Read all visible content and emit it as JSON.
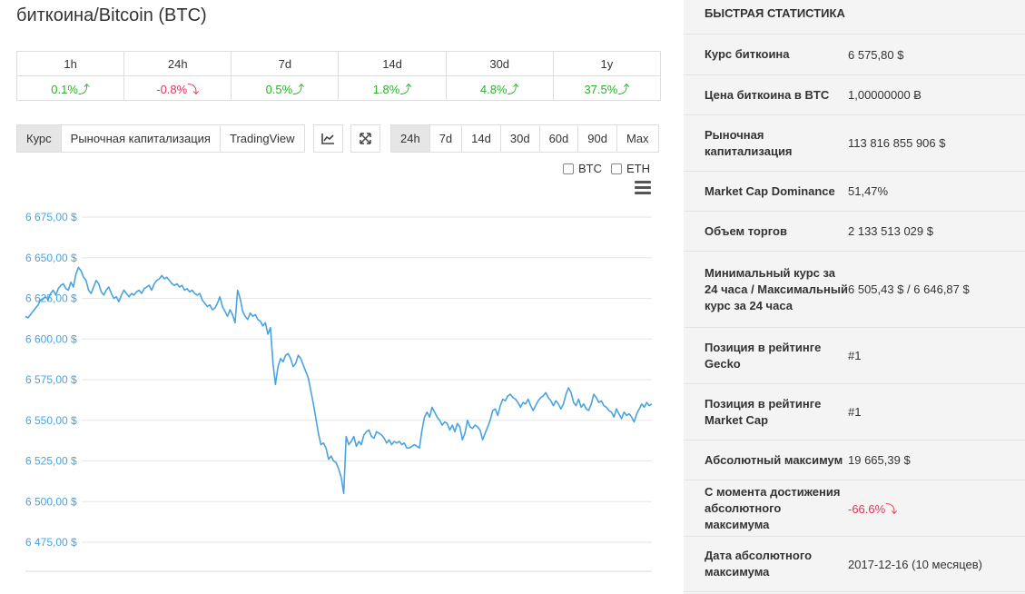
{
  "title": "биткоина/Bitcoin (BTC)",
  "change_table": {
    "headers": [
      "1h",
      "24h",
      "7d",
      "14d",
      "30d",
      "1y"
    ],
    "values": [
      {
        "text": "0.1%",
        "dir": "up"
      },
      {
        "text": "-0.8%",
        "dir": "down"
      },
      {
        "text": "0.5%",
        "dir": "up"
      },
      {
        "text": "1.8%",
        "dir": "up"
      },
      {
        "text": "4.8%",
        "dir": "up"
      },
      {
        "text": "37.5%",
        "dir": "up"
      }
    ],
    "up_arrow": "⤴",
    "down_arrow": "⤵",
    "colors": {
      "up": "#2bb12b",
      "down": "#e0365a"
    }
  },
  "toolbar": {
    "chart_tabs": [
      "Курс",
      "Рыночная капитализация",
      "TradingView"
    ],
    "active_chart_tab": "Курс",
    "icons": [
      "line-chart-icon",
      "expand-icon"
    ],
    "ranges": [
      "24h",
      "7d",
      "14d",
      "30d",
      "60d",
      "90d",
      "Max"
    ],
    "active_range": "24h",
    "compare": [
      {
        "label": "BTC",
        "checked": false
      },
      {
        "label": "ETH",
        "checked": false
      }
    ]
  },
  "chart_data": {
    "type": "line",
    "series": [
      {
        "color": "#4aa3df",
        "values": [
          6614,
          6613,
          6615,
          6617,
          6619,
          6621,
          6624,
          6625,
          6626,
          6624,
          6628,
          6630,
          6627,
          6631,
          6633,
          6634,
          6631,
          6630,
          6635,
          6632,
          6640,
          6644,
          6642,
          6638,
          6636,
          6630,
          6628,
          6632,
          6636,
          6634,
          6629,
          6627,
          6630,
          6632,
          6628,
          6625,
          6626,
          6623,
          6627,
          6630,
          6628,
          6626,
          6628,
          6627,
          6629,
          6630,
          6628,
          6631,
          6632,
          6633,
          6630,
          6634,
          6636,
          6637,
          6639,
          6637,
          6638,
          6636,
          6634,
          6633,
          6634,
          6632,
          6633,
          6630,
          6631,
          6629,
          6630,
          6628,
          6627,
          6628,
          6624,
          6622,
          6620,
          6621,
          6618,
          6619,
          6622,
          6626,
          6620,
          6617,
          6614,
          6618,
          6615,
          6610,
          6630,
          6625,
          6617,
          6614,
          6612,
          6616,
          6614,
          6615,
          6612,
          6611,
          6608,
          6610,
          6603,
          6607,
          6585,
          6572,
          6583,
          6588,
          6586,
          6590,
          6591,
          6588,
          6583,
          6585,
          6590,
          6588,
          6584,
          6580,
          6576,
          6568,
          6560,
          6551,
          6542,
          6535,
          6536,
          6533,
          6526,
          6528,
          6525,
          6524,
          6520,
          6515,
          6505,
          6540,
          6535,
          6537,
          6540,
          6534,
          6537,
          6535,
          6541,
          6543,
          6544,
          6540,
          6539,
          6543,
          6542,
          6541,
          6539,
          6536,
          6538,
          6535,
          6537,
          6536,
          6537,
          6535,
          6536,
          6533,
          6533,
          6534,
          6535,
          6534,
          6533,
          6544,
          6552,
          6555,
          6552,
          6558,
          6555,
          6552,
          6550,
          6547,
          6549,
          6548,
          6544,
          6547,
          6543,
          6548,
          6546,
          6538,
          6542,
          6550,
          6546,
          6545,
          6547,
          6546,
          6544,
          6538,
          6542,
          6546,
          6550,
          6556,
          6557,
          6553,
          6559,
          6563,
          6562,
          6565,
          6566,
          6564,
          6563,
          6561,
          6558,
          6561,
          6560,
          6563,
          6559,
          6556,
          6559,
          6562,
          6564,
          6565,
          6567,
          6564,
          6562,
          6559,
          6562,
          6560,
          6557,
          6560,
          6566,
          6570,
          6567,
          6561,
          6559,
          6563,
          6558,
          6560,
          6557,
          6556,
          6560,
          6566,
          6564,
          6561,
          6562,
          6559,
          6558,
          6556,
          6555,
          6552,
          6557,
          6554,
          6551,
          6555,
          6553,
          6554,
          6552,
          6549,
          6554,
          6557,
          6560,
          6558,
          6561,
          6559,
          6560
        ]
      }
    ],
    "yticks": [
      "6 475,00 $",
      "6 500,00 $",
      "6 525,00 $",
      "6 550,00 $",
      "6 575,00 $",
      "6 600,00 $",
      "6 625,00 $",
      "6 650,00 $",
      "6 675,00 $"
    ],
    "ytick_values": [
      6475,
      6500,
      6525,
      6550,
      6575,
      6600,
      6625,
      6650,
      6675
    ],
    "ylim": [
      6465,
      6680
    ],
    "grid": true
  },
  "stats": {
    "header": "БЫСТРАЯ СТАТИСТИКА",
    "rows": [
      {
        "label": "Курс биткоина",
        "value": "6 575,80 $"
      },
      {
        "label": "Цена биткоина в BTC",
        "value": "1,00000000 Ƀ"
      },
      {
        "label": "Рыночная капитализация",
        "value": "113 816 855 906 $"
      },
      {
        "label": "Market Cap Dominance",
        "value": "51,47%"
      },
      {
        "label": "Объем торгов",
        "value": "2 133 513 029 $"
      },
      {
        "label": "Минимальный курс за 24 часа / Максимальный курс за 24 часа",
        "value": "6 505,43 $ / 6 646,87 $"
      },
      {
        "label": "Позиция в рейтинге Gecko",
        "value": "#1"
      },
      {
        "label": "Позиция в рейтинге Market Cap",
        "value": "#1"
      },
      {
        "label": "Абсолютный максимум",
        "value": "19 665,39 $"
      },
      {
        "label": "С момента достижения абсолютного максимума",
        "value": "-66.6%⤵",
        "tone": "negative"
      },
      {
        "label": "Дата абсолютного максимума",
        "value": "2017-12-16 (10 месяцев)"
      }
    ]
  }
}
